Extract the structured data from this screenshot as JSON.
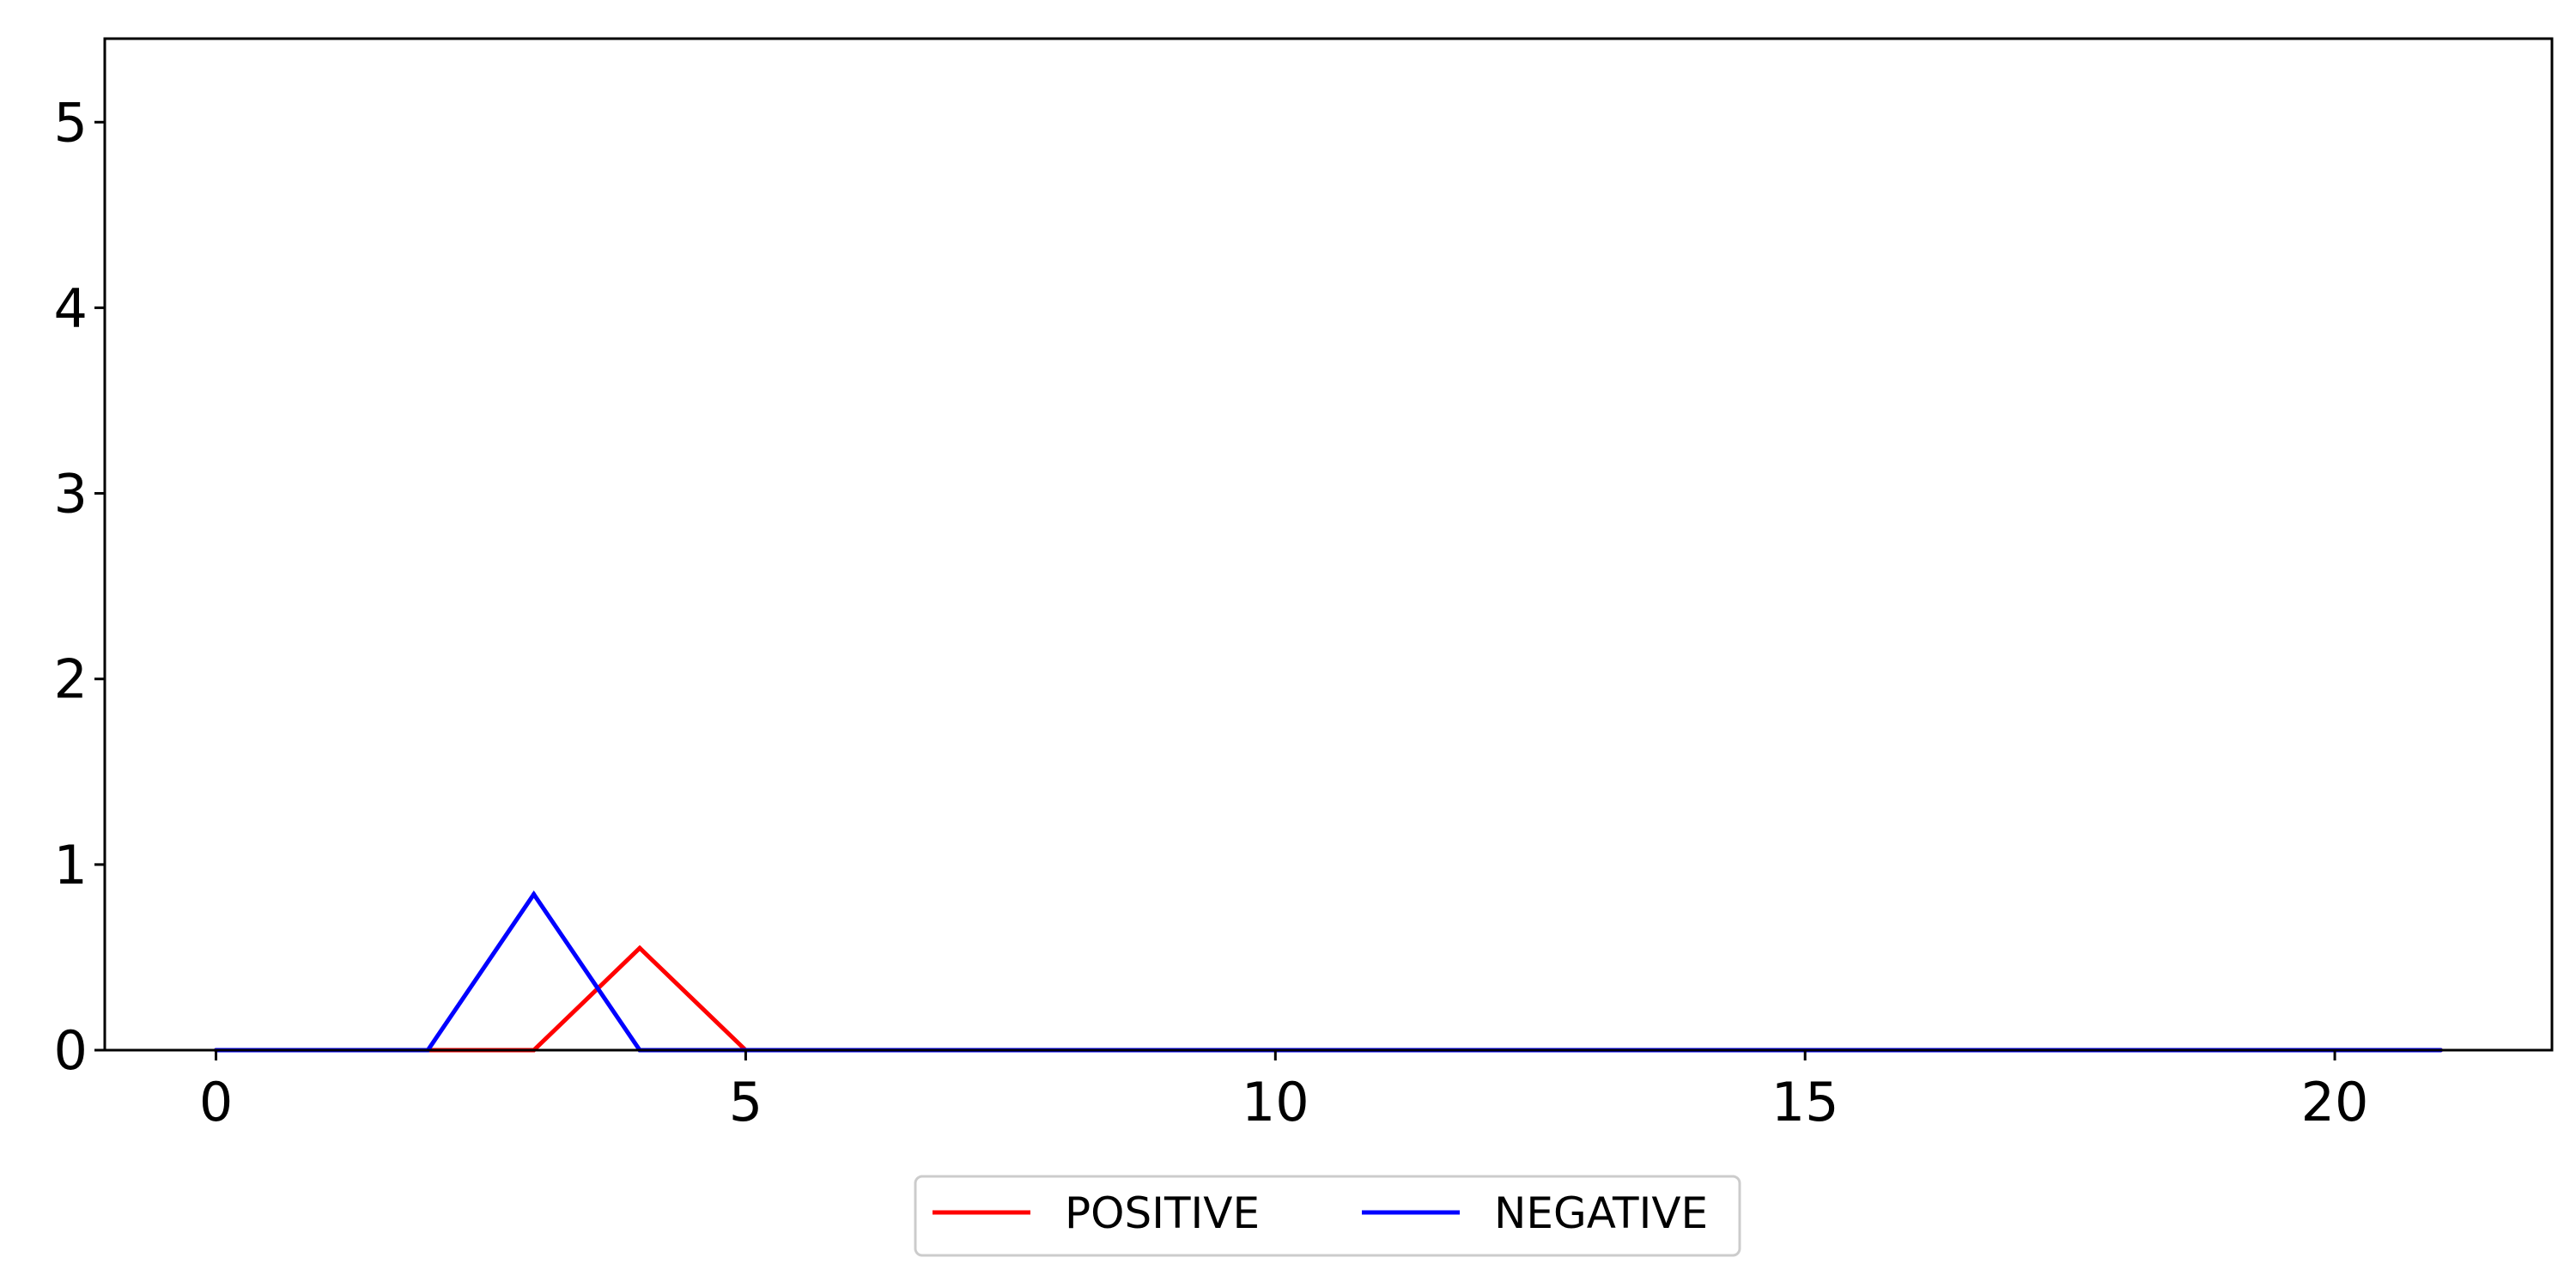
{
  "chart_data": {
    "type": "line",
    "title": "",
    "xlabel": "",
    "ylabel": "",
    "x": [
      0,
      1,
      2,
      3,
      4,
      5,
      6,
      7,
      8,
      9,
      10,
      11,
      12,
      13,
      14,
      15,
      16,
      17,
      18,
      19,
      20,
      21
    ],
    "xlim": [
      -1.05,
      22.05
    ],
    "ylim": [
      0,
      5.45
    ],
    "xticks": [
      0,
      5,
      10,
      15,
      20
    ],
    "yticks": [
      0,
      1,
      2,
      3,
      4,
      5
    ],
    "grid": false,
    "legend_position": "bottom-center",
    "series": [
      {
        "name": "POSITIVE",
        "color": "#ff0000",
        "values": [
          0,
          0,
          0,
          0,
          0.55,
          0,
          0,
          0,
          0,
          0,
          0,
          0,
          0,
          0,
          0,
          0,
          0,
          0,
          0,
          0,
          0,
          0
        ]
      },
      {
        "name": "NEGATIVE",
        "color": "#0000ff",
        "values": [
          0,
          0,
          0,
          0.84,
          0,
          0,
          0,
          0,
          0,
          0,
          0,
          0,
          0,
          0,
          0,
          0,
          0,
          0,
          0,
          0,
          0,
          0
        ]
      }
    ]
  }
}
